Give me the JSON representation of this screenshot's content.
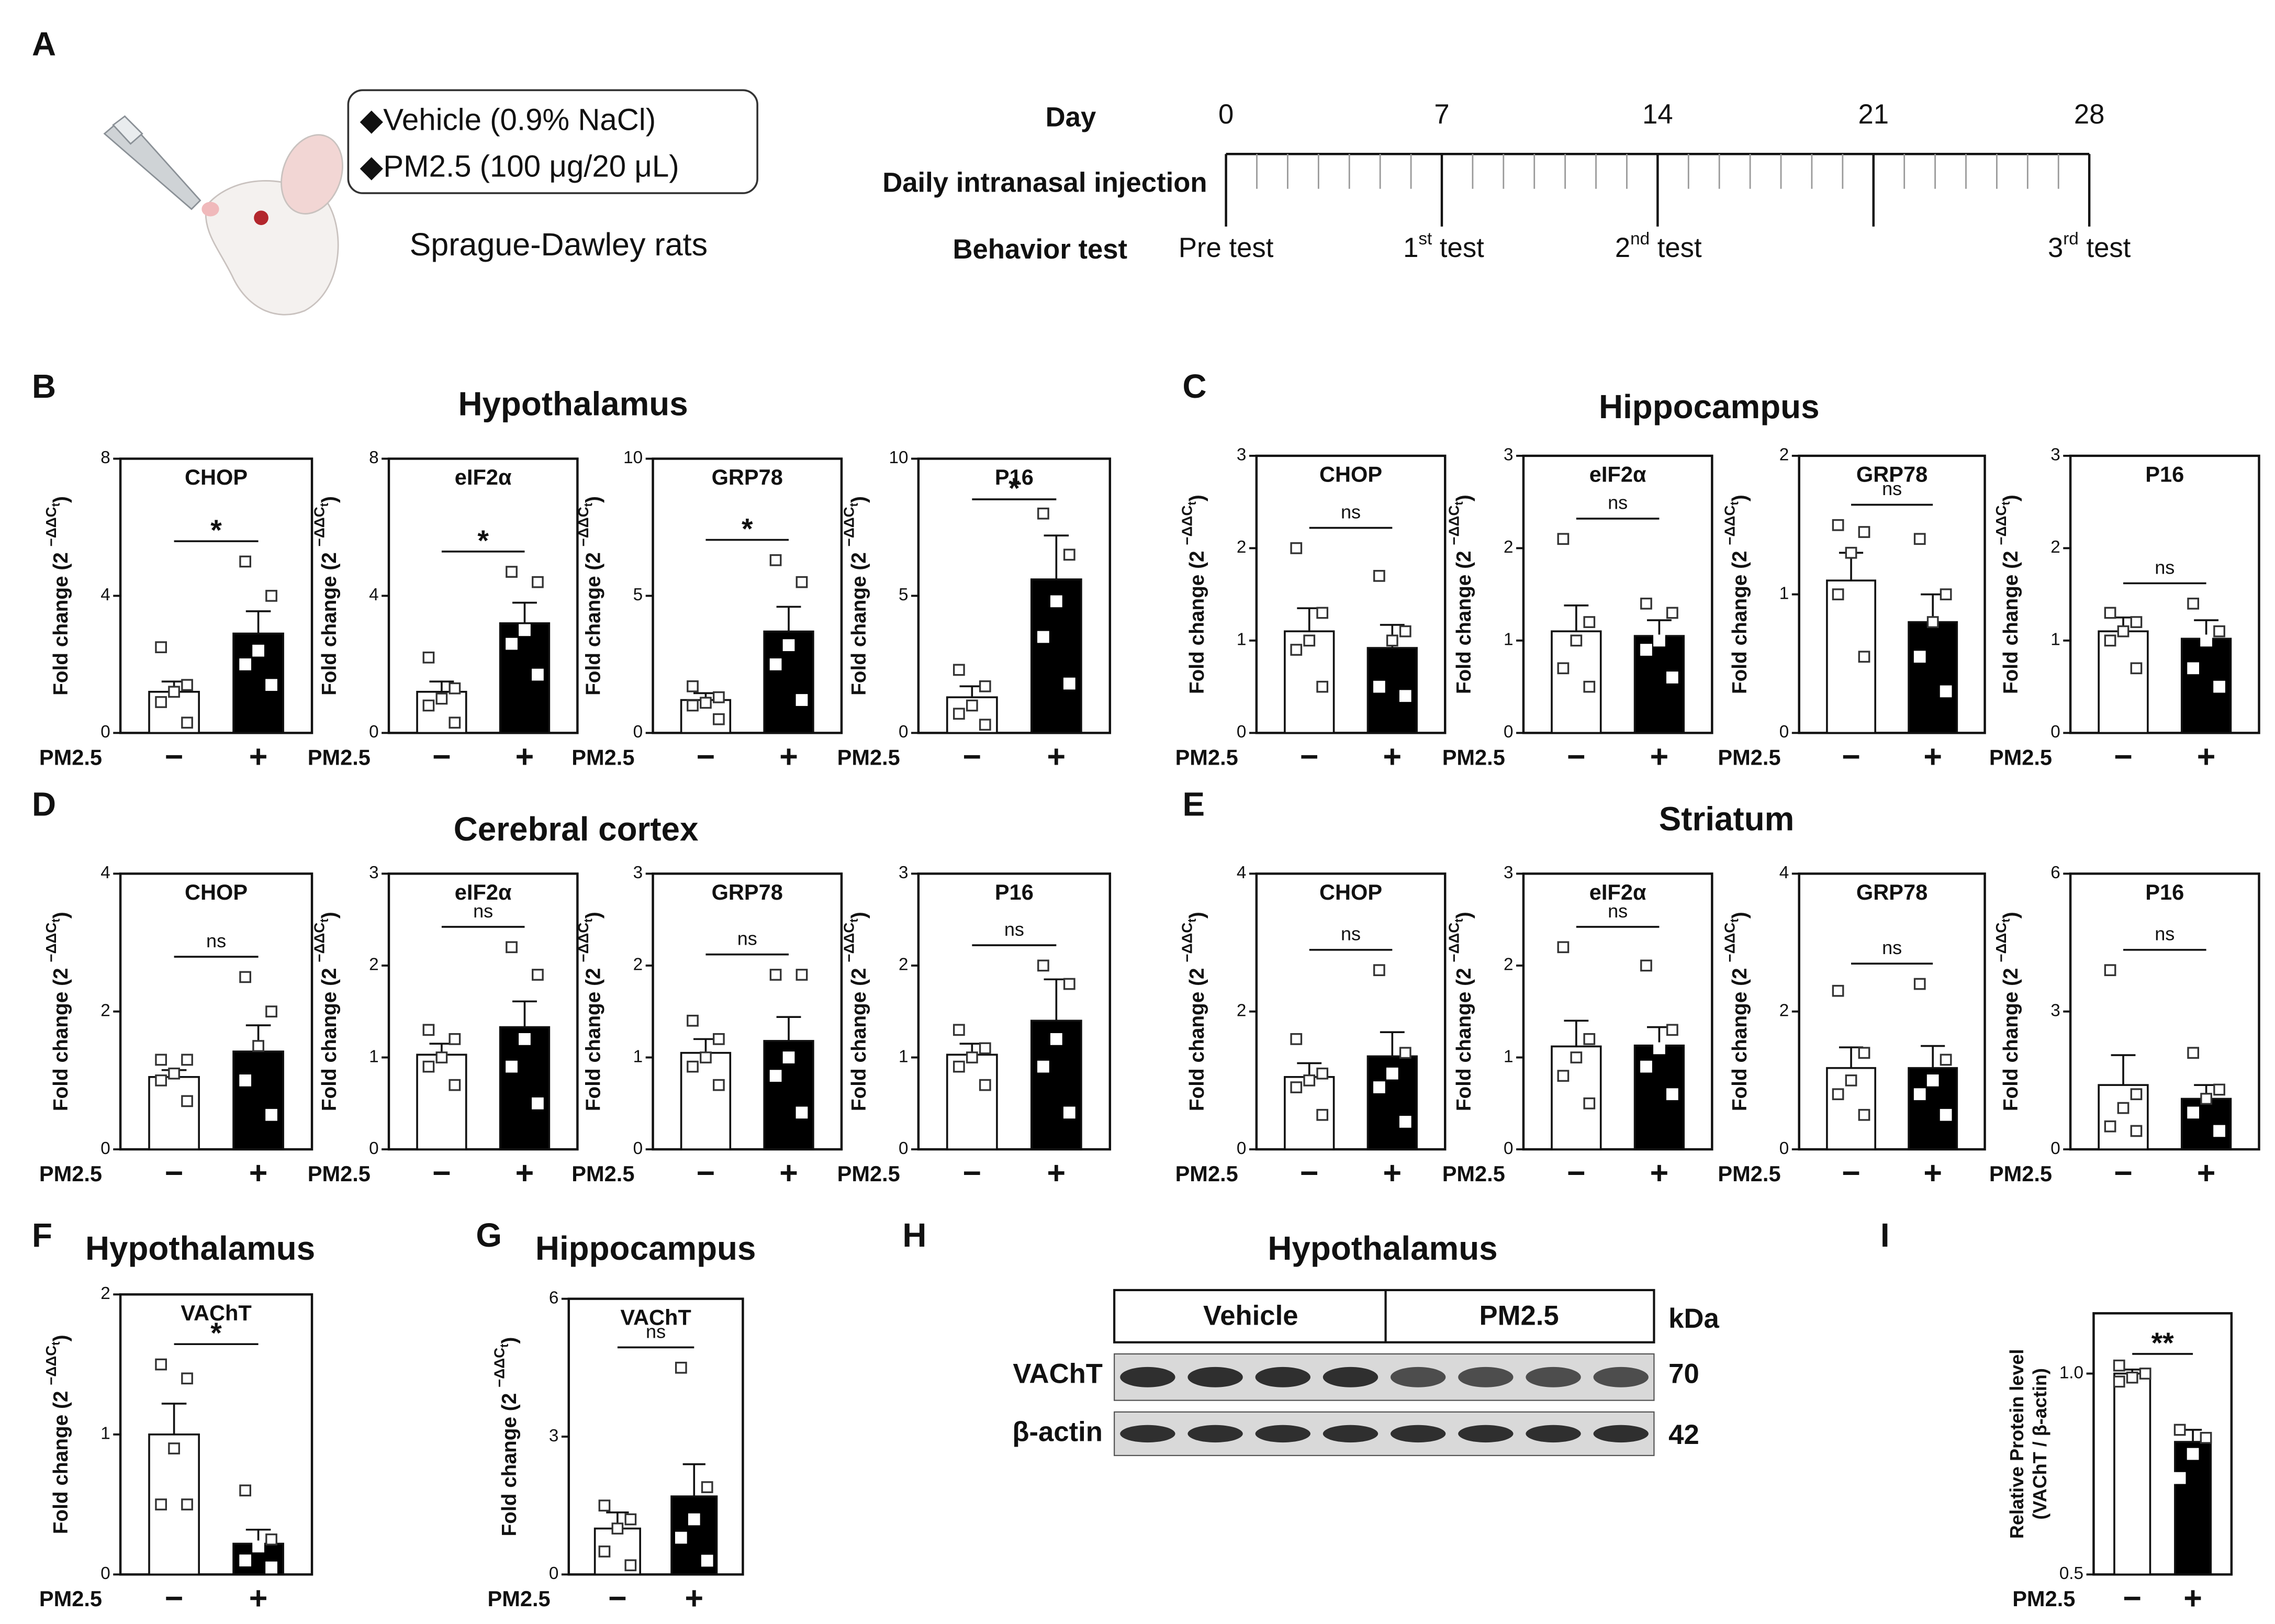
{
  "panel_labels": [
    "A",
    "B",
    "C",
    "D",
    "E",
    "F",
    "G",
    "H",
    "I"
  ],
  "design": {
    "groups": [
      "◆Vehicle (0.9% NaCl)",
      "◆PM2.5 (100 μg/20 μL)"
    ],
    "animal": "Sprague-Dawley rats"
  },
  "timeline": {
    "day_label": "Day",
    "row_labels": [
      "Daily intranasal injection",
      "Behavior test"
    ],
    "xlim": [
      0,
      28
    ],
    "xticks": [
      0,
      7,
      14,
      21,
      28
    ],
    "tests": [
      [
        "Pre test"
      ],
      [
        "1",
        "st",
        " test"
      ],
      [
        "2",
        "nd",
        " test"
      ],
      [
        "3",
        "rd",
        " test"
      ]
    ]
  },
  "group_titles": [
    "Hypothalamus",
    "Hippocampus",
    "Cerebral cortex",
    "Striatum",
    "Hypothalamus",
    "Hippocampus"
  ],
  "blot": {
    "title": "Hypothalamus",
    "groups": [
      "Vehicle",
      "PM2.5"
    ],
    "unit": "kDa",
    "rows": [
      {
        "name": "VAChT",
        "kda": 70
      },
      {
        "name": "β-actin",
        "kda": 42
      }
    ]
  },
  "chart_data": [
    {
      "type": "bar",
      "title": "CHOP",
      "x_label": "PM2.5",
      "categories": [
        "−",
        "+"
      ],
      "y_label": [
        "Fold change (2 ",
        "−ΔΔC",
        "t",
        ")"
      ],
      "colors": [
        "#ffffff",
        "#000000"
      ],
      "ylim": [
        0,
        8
      ],
      "yticks": [
        0,
        4,
        8
      ],
      "values": [
        1.2,
        2.9
      ],
      "errors": [
        0.3,
        0.65
      ],
      "points": [
        [
          2.5,
          1.4,
          1.2,
          0.9,
          0.3
        ],
        [
          5.0,
          4.0,
          2.4,
          2.0,
          1.4
        ]
      ],
      "significance": "*"
    },
    {
      "type": "bar",
      "title": "eIF2α",
      "x_label": "PM2.5",
      "categories": [
        "−",
        "+"
      ],
      "y_label": [
        "Fold change (2 ",
        "−ΔΔC",
        "t",
        ")"
      ],
      "colors": [
        "#ffffff",
        "#000000"
      ],
      "ylim": [
        0,
        8
      ],
      "yticks": [
        0,
        4,
        8
      ],
      "values": [
        1.2,
        3.2
      ],
      "errors": [
        0.3,
        0.6
      ],
      "points": [
        [
          2.2,
          1.3,
          1.0,
          0.8,
          0.3
        ],
        [
          4.7,
          4.4,
          3.0,
          2.6,
          1.7
        ]
      ],
      "significance": "*"
    },
    {
      "type": "bar",
      "title": "GRP78",
      "x_label": "PM2.5",
      "categories": [
        "−",
        "+"
      ],
      "y_label": [
        "Fold change (2 ",
        "−ΔΔC",
        "t",
        ")"
      ],
      "colors": [
        "#ffffff",
        "#000000"
      ],
      "ylim": [
        0,
        10
      ],
      "yticks": [
        0,
        5,
        10
      ],
      "values": [
        1.2,
        3.7
      ],
      "errors": [
        0.25,
        0.9
      ],
      "points": [
        [
          1.7,
          1.3,
          1.1,
          1.0,
          0.5
        ],
        [
          6.3,
          5.5,
          3.2,
          2.5,
          1.2
        ]
      ],
      "significance": "*"
    },
    {
      "type": "bar",
      "title": "P16",
      "x_label": "PM2.5",
      "categories": [
        "−",
        "+"
      ],
      "y_label": [
        "Fold change (2 ",
        "−ΔΔC",
        "t",
        ")"
      ],
      "colors": [
        "#ffffff",
        "#000000"
      ],
      "ylim": [
        0,
        10
      ],
      "yticks": [
        0,
        5,
        10
      ],
      "values": [
        1.3,
        5.6
      ],
      "errors": [
        0.4,
        1.6
      ],
      "points": [
        [
          2.3,
          1.7,
          1.0,
          0.7,
          0.3
        ],
        [
          8.0,
          6.5,
          4.8,
          3.5,
          1.8
        ]
      ],
      "significance": "*"
    },
    {
      "type": "bar",
      "title": "CHOP",
      "x_label": "PM2.5",
      "categories": [
        "−",
        "+"
      ],
      "y_label": [
        "Fold change (2 ",
        "−ΔΔC",
        "t",
        ")"
      ],
      "colors": [
        "#ffffff",
        "#000000"
      ],
      "ylim": [
        0,
        3
      ],
      "yticks": [
        0,
        1,
        2,
        3
      ],
      "values": [
        1.1,
        0.92
      ],
      "errors": [
        0.25,
        0.25
      ],
      "points": [
        [
          2.0,
          1.3,
          1.0,
          0.9,
          0.5
        ],
        [
          1.7,
          1.1,
          1.0,
          0.5,
          0.4
        ]
      ],
      "significance": "ns"
    },
    {
      "type": "bar",
      "title": "eIF2α",
      "x_label": "PM2.5",
      "categories": [
        "−",
        "+"
      ],
      "y_label": [
        "Fold change (2 ",
        "−ΔΔC",
        "t",
        ")"
      ],
      "colors": [
        "#ffffff",
        "#000000"
      ],
      "ylim": [
        0,
        3
      ],
      "yticks": [
        0,
        1,
        2,
        3
      ],
      "values": [
        1.1,
        1.05
      ],
      "errors": [
        0.28,
        0.17
      ],
      "points": [
        [
          2.1,
          1.2,
          1.0,
          0.7,
          0.5
        ],
        [
          1.4,
          1.3,
          1.0,
          0.9,
          0.6
        ]
      ],
      "significance": "ns"
    },
    {
      "type": "bar",
      "title": "GRP78",
      "x_label": "PM2.5",
      "categories": [
        "−",
        "+"
      ],
      "y_label": [
        "Fold change (2 ",
        "−ΔΔC",
        "t",
        ")"
      ],
      "colors": [
        "#ffffff",
        "#000000"
      ],
      "ylim": [
        0,
        2
      ],
      "yticks": [
        0,
        1,
        2
      ],
      "values": [
        1.1,
        0.8
      ],
      "errors": [
        0.2,
        0.2
      ],
      "points": [
        [
          1.5,
          1.45,
          1.3,
          1.0,
          0.55
        ],
        [
          1.4,
          1.0,
          0.8,
          0.55,
          0.3
        ]
      ],
      "significance": "ns"
    },
    {
      "type": "bar",
      "title": "P16",
      "x_label": "PM2.5",
      "categories": [
        "−",
        "+"
      ],
      "y_label": [
        "Fold change (2 ",
        "−ΔΔC",
        "t",
        ")"
      ],
      "colors": [
        "#ffffff",
        "#000000"
      ],
      "ylim": [
        0,
        3
      ],
      "yticks": [
        0,
        1,
        2,
        3
      ],
      "values": [
        1.1,
        1.02
      ],
      "errors": [
        0.15,
        0.2
      ],
      "points": [
        [
          1.3,
          1.2,
          1.1,
          1.0,
          0.7
        ],
        [
          1.4,
          1.1,
          1.0,
          0.7,
          0.5
        ]
      ],
      "significance": "ns"
    },
    {
      "type": "bar",
      "title": "CHOP",
      "x_label": "PM2.5",
      "categories": [
        "−",
        "+"
      ],
      "y_label": [
        "Fold change (2 ",
        "−ΔΔC",
        "t",
        ")"
      ],
      "colors": [
        "#ffffff",
        "#000000"
      ],
      "ylim": [
        0,
        4
      ],
      "yticks": [
        0,
        2,
        4
      ],
      "values": [
        1.05,
        1.42
      ],
      "errors": [
        0.1,
        0.38
      ],
      "points": [
        [
          1.3,
          1.3,
          1.1,
          1.0,
          0.7
        ],
        [
          2.5,
          2.0,
          1.5,
          1.0,
          0.5
        ]
      ],
      "significance": "ns"
    },
    {
      "type": "bar",
      "title": "eIF2α",
      "x_label": "PM2.5",
      "categories": [
        "−",
        "+"
      ],
      "y_label": [
        "Fold change (2 ",
        "−ΔΔC",
        "t",
        ")"
      ],
      "colors": [
        "#ffffff",
        "#000000"
      ],
      "ylim": [
        0,
        3
      ],
      "yticks": [
        0,
        1,
        2,
        3
      ],
      "values": [
        1.03,
        1.33
      ],
      "errors": [
        0.12,
        0.28
      ],
      "points": [
        [
          1.3,
          1.2,
          1.0,
          0.9,
          0.7
        ],
        [
          2.2,
          1.9,
          1.2,
          0.9,
          0.5
        ]
      ],
      "significance": "ns"
    },
    {
      "type": "bar",
      "title": "GRP78",
      "x_label": "PM2.5",
      "categories": [
        "−",
        "+"
      ],
      "y_label": [
        "Fold change (2 ",
        "−ΔΔC",
        "t",
        ")"
      ],
      "colors": [
        "#ffffff",
        "#000000"
      ],
      "ylim": [
        0,
        3
      ],
      "yticks": [
        0,
        1,
        2,
        3
      ],
      "values": [
        1.05,
        1.18
      ],
      "errors": [
        0.15,
        0.26
      ],
      "points": [
        [
          1.4,
          1.2,
          1.0,
          0.9,
          0.7
        ],
        [
          1.9,
          1.9,
          1.0,
          0.8,
          0.4
        ]
      ],
      "significance": "ns"
    },
    {
      "type": "bar",
      "title": "P16",
      "x_label": "PM2.5",
      "categories": [
        "−",
        "+"
      ],
      "y_label": [
        "Fold change (2 ",
        "−ΔΔC",
        "t",
        ")"
      ],
      "colors": [
        "#ffffff",
        "#000000"
      ],
      "ylim": [
        0,
        3
      ],
      "yticks": [
        0,
        1,
        2,
        3
      ],
      "values": [
        1.03,
        1.4
      ],
      "errors": [
        0.12,
        0.45
      ],
      "points": [
        [
          1.3,
          1.1,
          1.0,
          0.9,
          0.7
        ],
        [
          2.0,
          1.8,
          1.2,
          0.9,
          0.4
        ]
      ],
      "significance": "ns"
    },
    {
      "type": "bar",
      "title": "CHOP",
      "x_label": "PM2.5",
      "categories": [
        "−",
        "+"
      ],
      "y_label": [
        "Fold change (2 ",
        "−ΔΔC",
        "t",
        ")"
      ],
      "colors": [
        "#ffffff",
        "#000000"
      ],
      "ylim": [
        0,
        4
      ],
      "yticks": [
        0,
        2,
        4
      ],
      "values": [
        1.05,
        1.35
      ],
      "errors": [
        0.2,
        0.35
      ],
      "points": [
        [
          1.6,
          1.1,
          1.0,
          0.9,
          0.5
        ],
        [
          2.6,
          1.4,
          1.1,
          0.9,
          0.4
        ]
      ],
      "significance": "ns"
    },
    {
      "type": "bar",
      "title": "eIF2α",
      "x_label": "PM2.5",
      "categories": [
        "−",
        "+"
      ],
      "y_label": [
        "Fold change (2 ",
        "−ΔΔC",
        "t",
        ")"
      ],
      "colors": [
        "#ffffff",
        "#000000"
      ],
      "ylim": [
        0,
        3
      ],
      "yticks": [
        0,
        1,
        2,
        3
      ],
      "values": [
        1.12,
        1.13
      ],
      "errors": [
        0.28,
        0.2
      ],
      "points": [
        [
          2.2,
          1.2,
          1.0,
          0.8,
          0.5
        ],
        [
          2.0,
          1.3,
          1.1,
          0.9,
          0.6
        ]
      ],
      "significance": "ns"
    },
    {
      "type": "bar",
      "title": "GRP78",
      "x_label": "PM2.5",
      "categories": [
        "−",
        "+"
      ],
      "y_label": [
        "Fold change (2 ",
        "−ΔΔC",
        "t",
        ")"
      ],
      "colors": [
        "#ffffff",
        "#000000"
      ],
      "ylim": [
        0,
        4
      ],
      "yticks": [
        0,
        2,
        4
      ],
      "values": [
        1.18,
        1.18
      ],
      "errors": [
        0.3,
        0.32
      ],
      "points": [
        [
          2.3,
          1.4,
          1.0,
          0.8,
          0.5
        ],
        [
          2.4,
          1.3,
          1.0,
          0.8,
          0.5
        ]
      ],
      "significance": "ns"
    },
    {
      "type": "bar",
      "title": "P16",
      "x_label": "PM2.5",
      "categories": [
        "−",
        "+"
      ],
      "y_label": [
        "Fold change (2 ",
        "−ΔΔC",
        "t",
        ")"
      ],
      "colors": [
        "#ffffff",
        "#000000"
      ],
      "ylim": [
        0,
        6
      ],
      "yticks": [
        0,
        3,
        6
      ],
      "values": [
        1.4,
        1.1
      ],
      "errors": [
        0.65,
        0.3
      ],
      "points": [
        [
          3.9,
          1.2,
          0.9,
          0.5,
          0.4
        ],
        [
          2.1,
          1.3,
          1.1,
          0.8,
          0.4
        ]
      ],
      "significance": "ns"
    },
    {
      "type": "bar",
      "title": "VAChT",
      "x_label": "PM2.5",
      "categories": [
        "−",
        "+"
      ],
      "y_label": [
        "Fold change (2 ",
        "−ΔΔC",
        "t",
        ")"
      ],
      "colors": [
        "#ffffff",
        "#000000"
      ],
      "ylim": [
        0,
        2
      ],
      "yticks": [
        0,
        1,
        2
      ],
      "values": [
        1.0,
        0.22
      ],
      "errors": [
        0.22,
        0.1
      ],
      "points": [
        [
          1.5,
          1.4,
          0.9,
          0.5,
          0.5
        ],
        [
          0.6,
          0.25,
          0.2,
          0.1,
          0.05
        ]
      ],
      "significance": "*"
    },
    {
      "type": "bar",
      "title": "VAChT",
      "x_label": "PM2.5",
      "categories": [
        "−",
        "+"
      ],
      "y_label": [
        "Fold change (2 ",
        "−ΔΔC",
        "t",
        ")"
      ],
      "colors": [
        "#ffffff",
        "#000000"
      ],
      "ylim": [
        0,
        6
      ],
      "yticks": [
        0,
        3,
        6
      ],
      "values": [
        1.0,
        1.7
      ],
      "errors": [
        0.35,
        0.7
      ],
      "points": [
        [
          1.5,
          1.2,
          1.0,
          0.5,
          0.2
        ],
        [
          4.5,
          1.9,
          1.2,
          0.8,
          0.3
        ]
      ],
      "significance": "ns"
    },
    {
      "type": "bar",
      "x_label": "PM2.5",
      "categories": [
        "−",
        "+"
      ],
      "y_label_lines": [
        "Relative Protein level",
        "(VAChT / β-actin)"
      ],
      "colors": [
        "#ffffff",
        "#000000"
      ],
      "ylim": [
        0.5,
        1.15
      ],
      "yticks": [
        {
          "value": 0.5,
          "label": "0.5"
        },
        {
          "value": 1,
          "label": "1.0"
        }
      ],
      "values": [
        1.0,
        0.83
      ],
      "errors": [
        0.01,
        0.03
      ],
      "points": [
        [
          1.02,
          1.0,
          0.99,
          0.98
        ],
        [
          0.86,
          0.84,
          0.8,
          0.74
        ]
      ],
      "significance": "**"
    }
  ]
}
